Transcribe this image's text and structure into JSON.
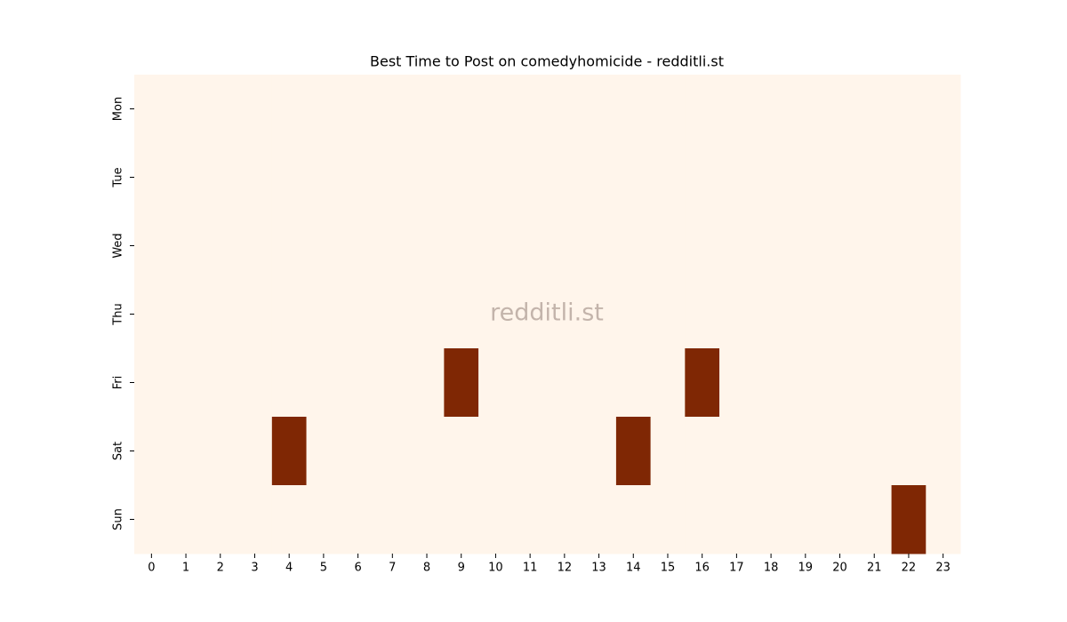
{
  "chart_data": {
    "type": "heatmap",
    "title": "Best Time to Post on comedyhomicide - redditli.st",
    "watermark": "redditli.st",
    "x_categories": [
      0,
      1,
      2,
      3,
      4,
      5,
      6,
      7,
      8,
      9,
      10,
      11,
      12,
      13,
      14,
      15,
      16,
      17,
      18,
      19,
      20,
      21,
      22,
      23
    ],
    "y_categories": [
      "Mon",
      "Tue",
      "Wed",
      "Thu",
      "Fri",
      "Sat",
      "Sun"
    ],
    "values": [
      [
        0,
        0,
        0,
        0,
        0,
        0,
        0,
        0,
        0,
        0,
        0,
        0,
        0,
        0,
        0,
        0,
        0,
        0,
        0,
        0,
        0,
        0,
        0,
        0
      ],
      [
        0,
        0,
        0,
        0,
        0,
        0,
        0,
        0,
        0,
        0,
        0,
        0,
        0,
        0,
        0,
        0,
        0,
        0,
        0,
        0,
        0,
        0,
        0,
        0
      ],
      [
        0,
        0,
        0,
        0,
        0,
        0,
        0,
        0,
        0,
        0,
        0,
        0,
        0,
        0,
        0,
        0,
        0,
        0,
        0,
        0,
        0,
        0,
        0,
        0
      ],
      [
        0,
        0,
        0,
        0,
        0,
        0,
        0,
        0,
        0,
        0,
        0,
        0,
        0,
        0,
        0,
        0,
        0,
        0,
        0,
        0,
        0,
        0,
        0,
        0
      ],
      [
        0,
        0,
        0,
        0,
        0,
        0,
        0,
        0,
        0,
        1,
        0,
        0,
        0,
        0,
        0,
        0,
        1,
        0,
        0,
        0,
        0,
        0,
        0,
        0
      ],
      [
        0,
        0,
        0,
        0,
        1,
        0,
        0,
        0,
        0,
        0,
        0,
        0,
        0,
        0,
        1,
        0,
        0,
        0,
        0,
        0,
        0,
        0,
        0,
        0
      ],
      [
        0,
        0,
        0,
        0,
        0,
        0,
        0,
        0,
        0,
        0,
        0,
        0,
        0,
        0,
        0,
        0,
        0,
        0,
        0,
        0,
        0,
        0,
        1,
        0
      ]
    ],
    "vlim": [
      0,
      1
    ],
    "colormap": [
      "#fff5eb",
      "#7f2704"
    ]
  }
}
